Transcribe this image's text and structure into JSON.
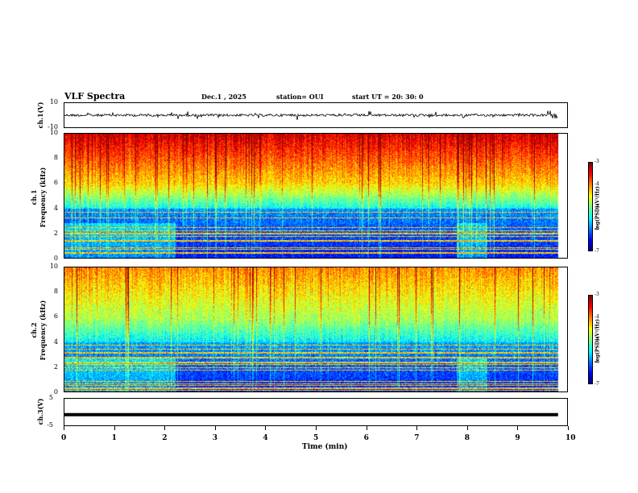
{
  "header": {
    "title": "VLF Spectra",
    "date": "Dec.1 , 2025",
    "station": "station= OUI",
    "start": "start UT = 20: 30: 0"
  },
  "colors": {
    "trace": "#000000",
    "colormap": [
      "#00007f",
      "#0000ff",
      "#007fff",
      "#00ffff",
      "#7fff7f",
      "#ffff00",
      "#ff7f00",
      "#ff0000",
      "#7f0000"
    ]
  },
  "chart_data": [
    {
      "type": "line",
      "name": "ch1-waveform",
      "ylabel": "ch.1(V)",
      "ylim": [
        -10,
        10
      ],
      "ytick_labels": [
        "10",
        "-10"
      ],
      "xlim": [
        0,
        10
      ],
      "description_values": {
        "mean": 0,
        "amplitude_typical": 1.5
      }
    },
    {
      "type": "heatmap",
      "name": "ch1-spectrogram",
      "ylabel_top": "ch.1",
      "ylabel": "Frequency (kHz)",
      "ylim": [
        0,
        10
      ],
      "ytick_labels": [
        "0",
        "2",
        "4",
        "6",
        "8",
        "10"
      ],
      "xlim": [
        0,
        10
      ],
      "colorbar": {
        "label": "log(PSD)(V²/Hz)",
        "range": [
          -7,
          -3
        ],
        "tick_labels": [
          "-3",
          "-4",
          "-5",
          "-6",
          "-7"
        ]
      }
    },
    {
      "type": "heatmap",
      "name": "ch2-spectrogram",
      "ylabel_top": "ch.2",
      "ylabel": "Frequency (kHz)",
      "ylim": [
        0,
        10
      ],
      "ytick_labels": [
        "0",
        "2",
        "4",
        "6",
        "8",
        "10"
      ],
      "xlim": [
        0,
        10
      ],
      "colorbar": {
        "label": "log(PSD)(V²/Hz)",
        "range": [
          -7,
          -3
        ],
        "tick_labels": [
          "-3",
          "-4",
          "-5",
          "-6",
          "-7"
        ]
      }
    },
    {
      "type": "line",
      "name": "ch3-waveform",
      "ylabel": "ch.3(V)",
      "ylim": [
        -5,
        5
      ],
      "ytick_labels": [
        "5",
        "0",
        "-5"
      ],
      "xlim": [
        0,
        10
      ],
      "description_values": {
        "constant": -1
      }
    }
  ],
  "xaxis": {
    "label": "Time (min)",
    "tick_labels": [
      "0",
      "1",
      "2",
      "3",
      "4",
      "5",
      "6",
      "7",
      "8",
      "9",
      "10"
    ],
    "data_end": 9.82
  }
}
